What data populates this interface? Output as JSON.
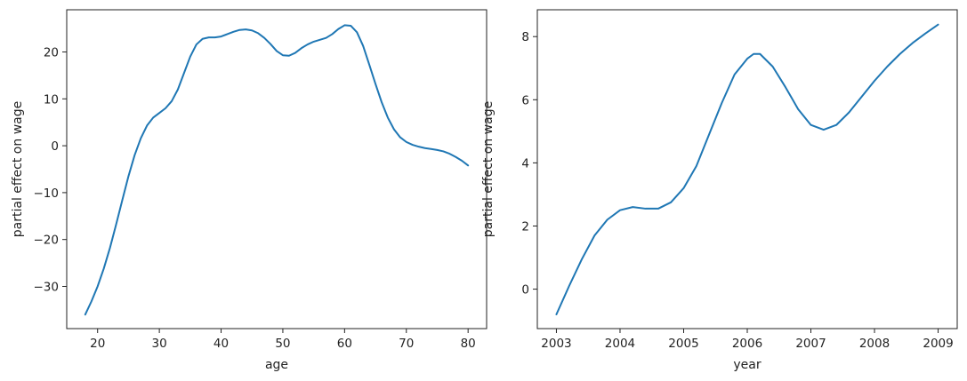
{
  "chart_data": [
    {
      "type": "line",
      "title": "",
      "xlabel": "age",
      "ylabel": "partial effect on wage",
      "xlim": [
        15,
        83
      ],
      "ylim": [
        -39,
        29
      ],
      "xticks": [
        20,
        30,
        40,
        50,
        60,
        70,
        80
      ],
      "yticks": [
        -30,
        -20,
        -10,
        0,
        10,
        20
      ],
      "grid": false,
      "color": "#1f77b4",
      "series": [
        {
          "x": [
            18,
            19,
            20,
            21,
            22,
            23,
            24,
            25,
            26,
            27,
            28,
            29,
            30,
            31,
            32,
            33,
            34,
            35,
            36,
            37,
            38,
            39,
            40,
            41,
            42,
            43,
            44,
            45,
            46,
            47,
            48,
            49,
            50,
            51,
            52,
            53,
            54,
            55,
            56,
            57,
            58,
            59,
            60,
            61,
            62,
            63,
            64,
            65,
            66,
            67,
            68,
            69,
            70,
            71,
            72,
            73,
            74,
            75,
            76,
            77,
            78,
            79,
            80
          ],
          "y": [
            -36.0,
            -33.2,
            -30.0,
            -26.2,
            -21.8,
            -16.8,
            -11.6,
            -6.5,
            -2.0,
            1.6,
            4.3,
            6.0,
            7.0,
            8.0,
            9.5,
            12.0,
            15.5,
            19.0,
            21.6,
            22.8,
            23.1,
            23.1,
            23.3,
            23.8,
            24.3,
            24.7,
            24.8,
            24.6,
            24.0,
            23.0,
            21.7,
            20.2,
            19.3,
            19.2,
            19.8,
            20.8,
            21.6,
            22.2,
            22.6,
            23.0,
            23.8,
            24.9,
            25.7,
            25.6,
            24.2,
            21.3,
            17.3,
            13.2,
            9.3,
            6.0,
            3.5,
            1.8,
            0.8,
            0.2,
            -0.2,
            -0.5,
            -0.7,
            -0.9,
            -1.2,
            -1.7,
            -2.4,
            -3.2,
            -4.2
          ]
        }
      ]
    },
    {
      "type": "line",
      "title": "",
      "xlabel": "year",
      "ylabel": "partial effect on wage",
      "xlim": [
        2002.7,
        2009.3
      ],
      "ylim": [
        -1.25,
        8.85
      ],
      "xticks": [
        2003,
        2004,
        2005,
        2006,
        2007,
        2008,
        2009
      ],
      "yticks": [
        0,
        2,
        4,
        6,
        8
      ],
      "grid": false,
      "color": "#1f77b4",
      "series": [
        {
          "x": [
            2003.0,
            2003.2,
            2003.4,
            2003.6,
            2003.8,
            2004.0,
            2004.2,
            2004.4,
            2004.6,
            2004.8,
            2005.0,
            2005.2,
            2005.4,
            2005.6,
            2005.8,
            2006.0,
            2006.1,
            2006.2,
            2006.4,
            2006.6,
            2006.8,
            2007.0,
            2007.2,
            2007.4,
            2007.6,
            2007.8,
            2008.0,
            2008.2,
            2008.4,
            2008.6,
            2008.8,
            2009.0
          ],
          "y": [
            -0.8,
            0.1,
            0.95,
            1.7,
            2.2,
            2.5,
            2.6,
            2.55,
            2.55,
            2.75,
            3.2,
            3.9,
            4.9,
            5.9,
            6.8,
            7.3,
            7.45,
            7.45,
            7.05,
            6.4,
            5.7,
            5.2,
            5.05,
            5.2,
            5.6,
            6.1,
            6.6,
            7.05,
            7.45,
            7.8,
            8.1,
            8.38
          ]
        }
      ]
    }
  ]
}
